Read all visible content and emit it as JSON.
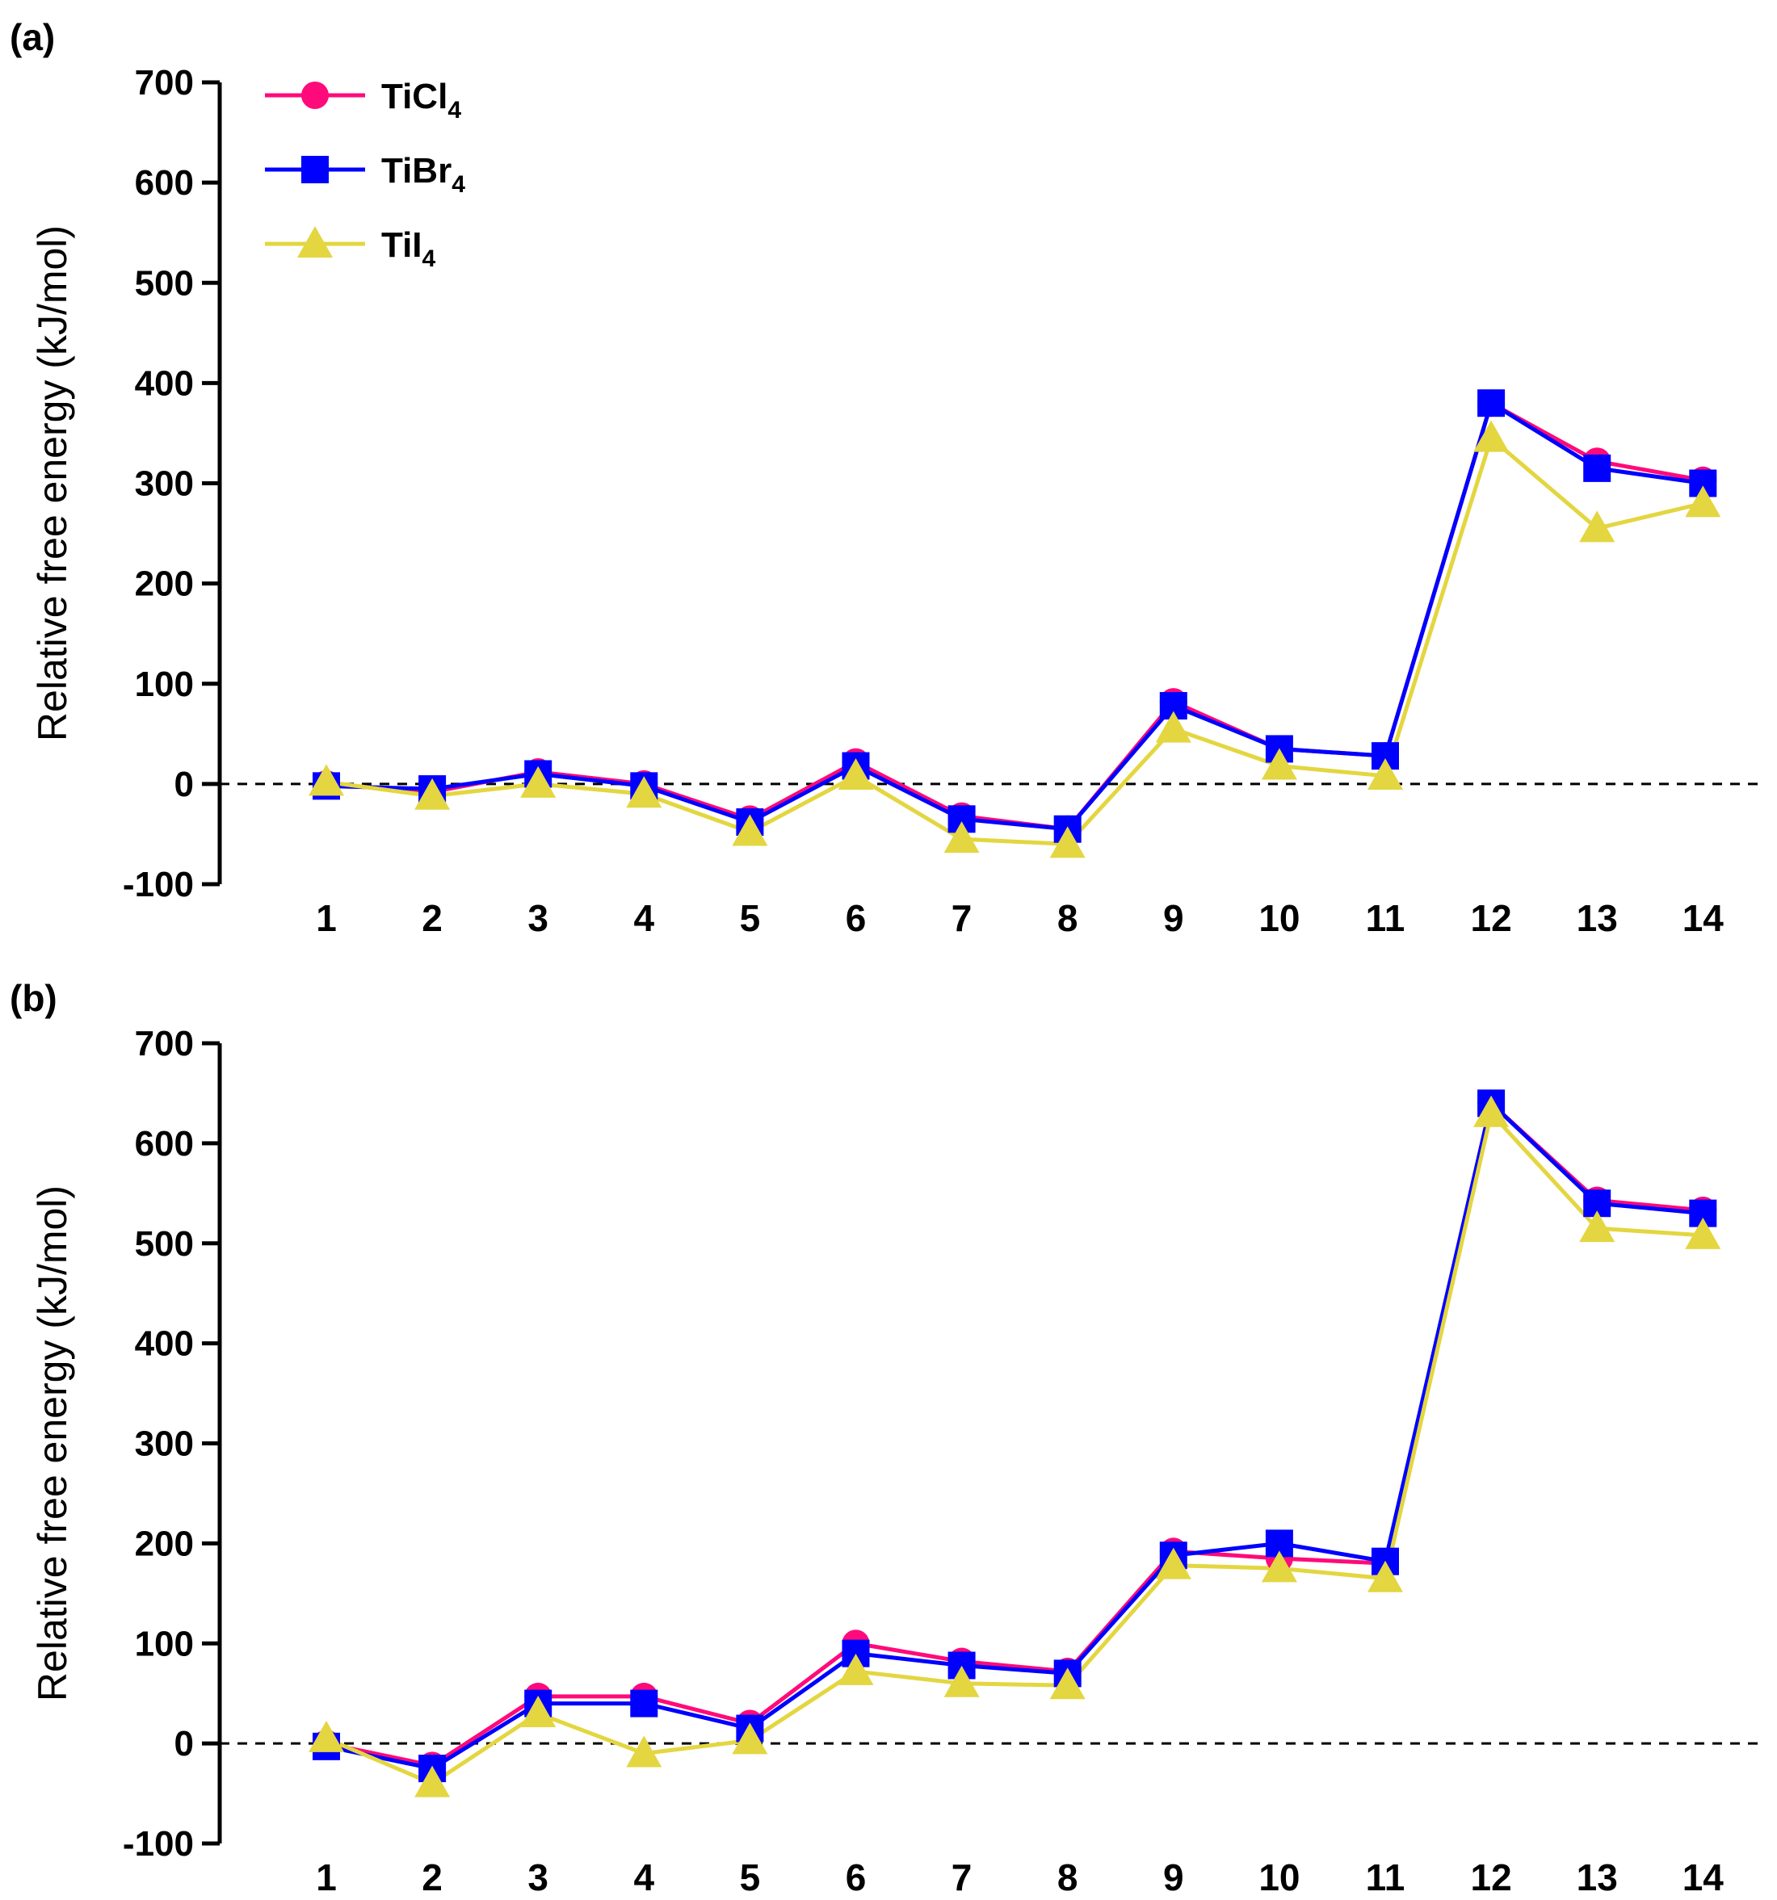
{
  "chart_data": [
    {
      "panel_label": "(a)",
      "type": "line",
      "ylabel": "Relative free energy (kJ/mol)",
      "xlabel": "",
      "ylim": [
        -100,
        700
      ],
      "yticks": [
        -100,
        0,
        100,
        200,
        300,
        400,
        500,
        600,
        700
      ],
      "categories": [
        "1",
        "2",
        "3",
        "4",
        "5",
        "6",
        "7",
        "8",
        "9",
        "10",
        "11",
        "12",
        "13",
        "14"
      ],
      "reference_line": {
        "y": 0,
        "style": "dashed"
      },
      "legend": {
        "placement": "top-left",
        "entries": [
          {
            "base": "TiCl",
            "sub": "4"
          },
          {
            "base": "TiBr",
            "sub": "4"
          },
          {
            "base": "TiI",
            "sub": "4"
          }
        ]
      },
      "series": [
        {
          "name": "TiCl4",
          "color": "#ff0a7a",
          "marker": "circle",
          "values": [
            0,
            -8,
            12,
            0,
            -35,
            22,
            -32,
            -45,
            82,
            35,
            28,
            380,
            322,
            303
          ]
        },
        {
          "name": "TiBr4",
          "color": "#0000ff",
          "marker": "square",
          "values": [
            -2,
            -5,
            10,
            -2,
            -38,
            18,
            -35,
            -45,
            78,
            35,
            28,
            380,
            315,
            300
          ]
        },
        {
          "name": "TiI4",
          "color": "#e3d640",
          "marker": "triangle",
          "values": [
            2,
            -12,
            0,
            -10,
            -48,
            8,
            -55,
            -60,
            55,
            18,
            8,
            345,
            255,
            280
          ]
        }
      ]
    },
    {
      "panel_label": "(b)",
      "type": "line",
      "ylabel": "Relative free energy (kJ/mol)",
      "xlabel": "",
      "ylim": [
        -100,
        700
      ],
      "yticks": [
        -100,
        0,
        100,
        200,
        300,
        400,
        500,
        600,
        700
      ],
      "categories": [
        "1",
        "2",
        "3",
        "4",
        "5",
        "6",
        "7",
        "8",
        "9",
        "10",
        "11",
        "12",
        "13",
        "14"
      ],
      "reference_line": {
        "y": 0,
        "style": "dashed"
      },
      "series": [
        {
          "name": "TiCl4",
          "color": "#ff0a7a",
          "marker": "circle",
          "values": [
            0,
            -22,
            47,
            47,
            20,
            100,
            82,
            72,
            192,
            185,
            180,
            640,
            543,
            533
          ]
        },
        {
          "name": "TiBr4",
          "color": "#0000ff",
          "marker": "square",
          "values": [
            -3,
            -25,
            40,
            40,
            15,
            90,
            78,
            70,
            188,
            200,
            182,
            640,
            540,
            530
          ]
        },
        {
          "name": "TiI4",
          "color": "#e3d640",
          "marker": "triangle",
          "values": [
            5,
            -40,
            30,
            -10,
            3,
            72,
            60,
            58,
            178,
            175,
            165,
            630,
            515,
            508
          ]
        }
      ]
    }
  ]
}
